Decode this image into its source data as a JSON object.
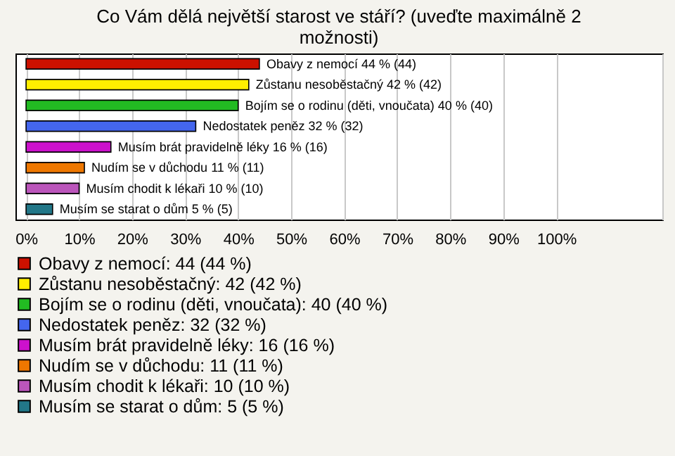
{
  "chart_data": {
    "type": "bar",
    "orientation": "horizontal",
    "title": "Co Vám dělá největší starost ve stáří? (uveďte maximálně 2 možnosti)",
    "categories": [
      null,
      null,
      null,
      null,
      null,
      null,
      null,
      null
    ],
    "series": [
      {
        "name": "Obavy z nemocí: 44 (44 %)",
        "color": "#cc1100",
        "values": [
          44,
          null,
          null,
          null,
          null,
          null,
          null,
          null
        ],
        "value_labels": [
          "Obavy z nemocí 44 % (44)",
          null,
          null,
          null,
          null,
          null,
          null,
          null
        ]
      },
      {
        "name": "Zůstanu nesoběstačný: 42 (42 %)",
        "color": "#ffee00",
        "values": [
          null,
          42,
          null,
          null,
          null,
          null,
          null,
          null
        ],
        "value_labels": [
          null,
          "Zůstanu nesoběstačný 42 % (42)",
          null,
          null,
          null,
          null,
          null,
          null
        ]
      },
      {
        "name": "Bojím se o rodinu (děti, vnoučata): 40 (40 %)",
        "color": "#22bb22",
        "values": [
          null,
          null,
          40,
          null,
          null,
          null,
          null,
          null
        ],
        "value_labels": [
          null,
          null,
          "Bojím se o rodinu (děti, vnoučata) 40 % (40)",
          null,
          null,
          null,
          null,
          null
        ]
      },
      {
        "name": "Nedostatek peněz: 32 (32 %)",
        "color": "#4466ee",
        "values": [
          null,
          null,
          null,
          32,
          null,
          null,
          null,
          null
        ],
        "value_labels": [
          null,
          null,
          null,
          "Nedostatek peněz 32 % (32)",
          null,
          null,
          null,
          null
        ]
      },
      {
        "name": "Musím brát pravidelně léky: 16 (16 %)",
        "color": "#cc11cc",
        "values": [
          null,
          null,
          null,
          null,
          16,
          null,
          null,
          null
        ],
        "value_labels": [
          null,
          null,
          null,
          null,
          "Musím brát pravidelně léky 16 % (16)",
          null,
          null,
          null
        ]
      },
      {
        "name": "Nudím se v důchodu: 11 (11 %)",
        "color": "#ee7700",
        "values": [
          null,
          null,
          null,
          null,
          null,
          11,
          null,
          null
        ],
        "value_labels": [
          null,
          null,
          null,
          null,
          null,
          "Nudím se v důchodu 11 % (11)",
          null,
          null
        ]
      },
      {
        "name": "Musím chodit k lékaři: 10 (10 %)",
        "color": "#bb55bb",
        "values": [
          null,
          null,
          null,
          null,
          null,
          null,
          10,
          null
        ],
        "value_labels": [
          null,
          null,
          null,
          null,
          null,
          null,
          "Musím chodit k lékaři 10 % (10)",
          null
        ]
      },
      {
        "name": "Musím se starat o dům: 5 (5 %)",
        "color": "#227788",
        "values": [
          null,
          null,
          null,
          null,
          null,
          null,
          null,
          5
        ],
        "value_labels": [
          null,
          null,
          null,
          null,
          null,
          null,
          null,
          "Musím se starat o dům 5 % (5)"
        ]
      }
    ],
    "xlim": [
      -2,
      120
    ],
    "xticks": [
      {
        "value": 0,
        "label": "0%"
      },
      {
        "value": 10,
        "label": "10%"
      },
      {
        "value": 20,
        "label": "20%"
      },
      {
        "value": 30,
        "label": "30%"
      },
      {
        "value": 40,
        "label": "40%"
      },
      {
        "value": 50,
        "label": "50%"
      },
      {
        "value": 60,
        "label": "60%"
      },
      {
        "value": 70,
        "label": "70%"
      },
      {
        "value": 80,
        "label": "80%"
      },
      {
        "value": 90,
        "label": "90%"
      },
      {
        "value": 100,
        "label": "100%"
      },
      {
        "value": 120,
        "label": null
      }
    ],
    "grid": "x",
    "legend": "bottom",
    "tick_labels": "x"
  }
}
